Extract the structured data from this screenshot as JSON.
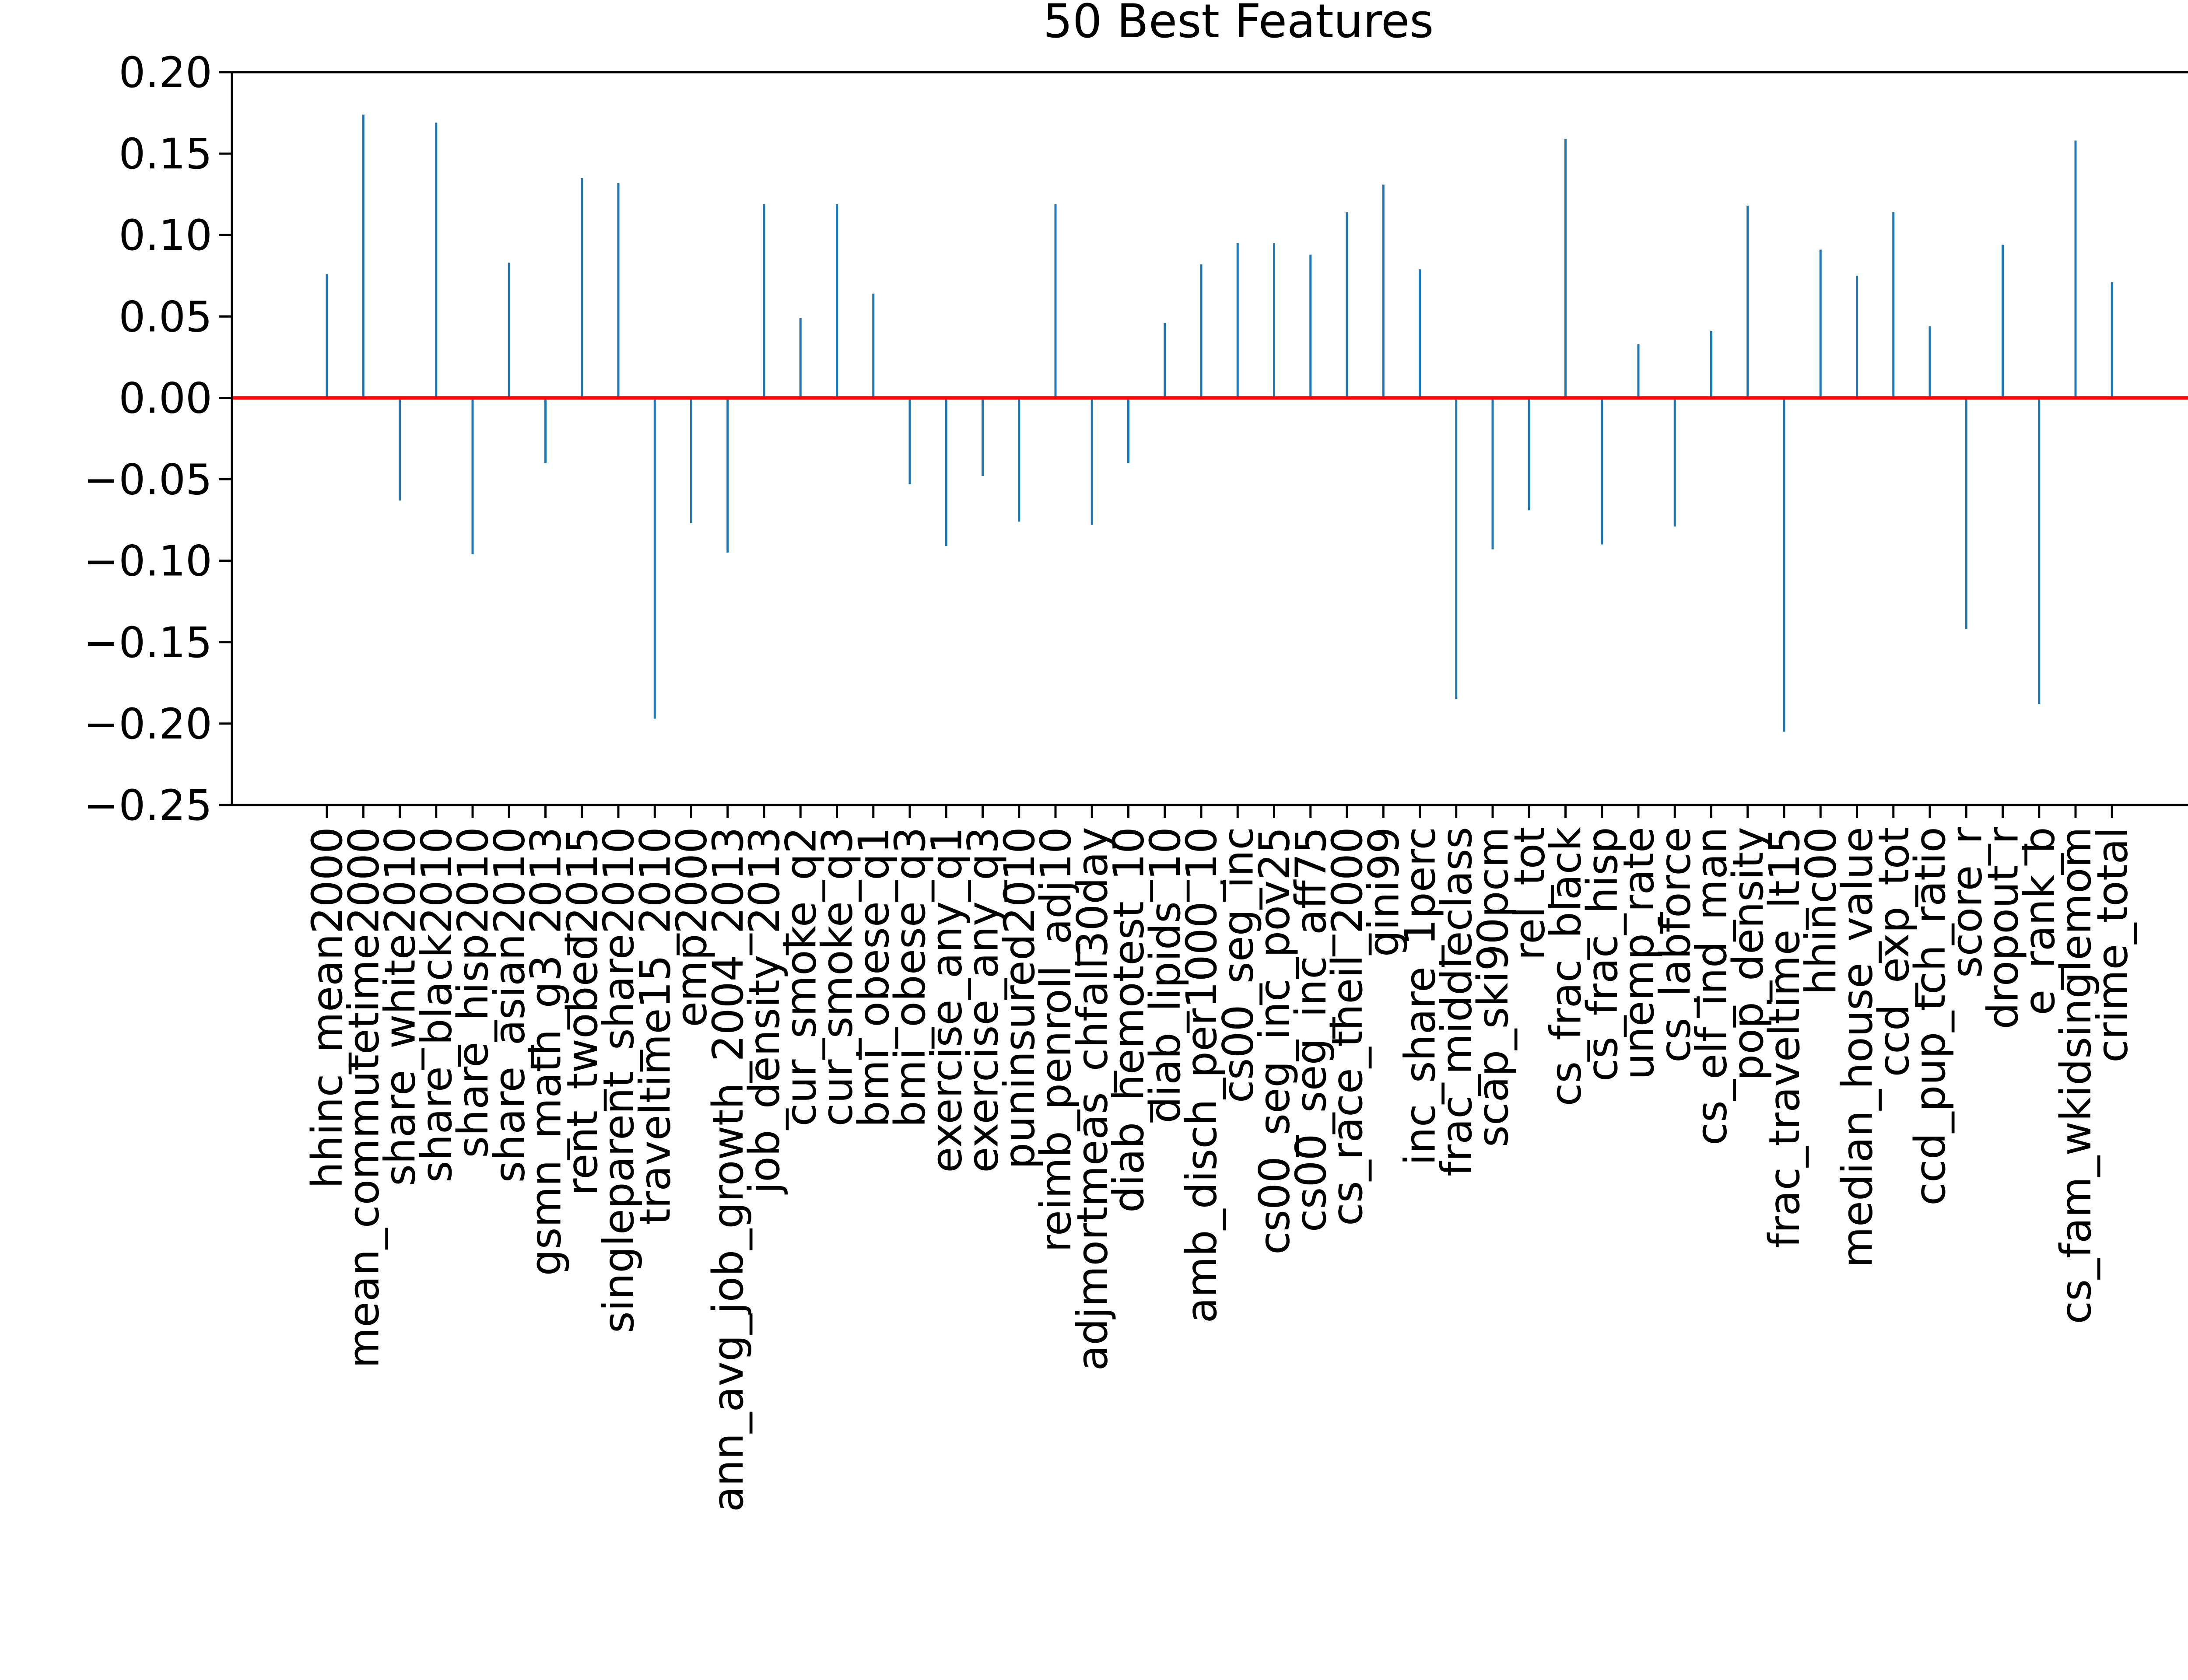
{
  "chart_data": {
    "type": "bar",
    "title": "50 Best Features",
    "xlabel": "",
    "ylabel": "",
    "ylim": [
      -0.25,
      0.2
    ],
    "yticks": [
      "0.20",
      "0.15",
      "0.10",
      "0.05",
      "0.00",
      "−0.05",
      "−0.10",
      "−0.15",
      "−0.20",
      "−0.25"
    ],
    "grid": false,
    "bar_color": "#1f77b4",
    "zero_line_color": "#ff0000",
    "categories": [
      "hhinc_mean2000",
      "mean_commutetime2000",
      "share_white2010",
      "share_black2010",
      "share_hisp2010",
      "share_asian2010",
      "gsmn_math_g3_2013",
      "rent_twobed2015",
      "singleparent_share2010",
      "traveltime15_2010",
      "emp2000",
      "ann_avg_job_growth_2004_2013",
      "job_density_2013",
      "cur_smoke_q2",
      "cur_smoke_q3",
      "bmi_obese_q1",
      "bmi_obese_q3",
      "exercise_any_q1",
      "exercise_any_q3",
      "puninsured2010",
      "reimb_penroll_adj10",
      "adjmortmeas_chfall30day",
      "diab_hemotest_10",
      "diab_lipids_10",
      "amb_disch_per1000_10",
      "cs00_seg_inc",
      "cs00_seg_inc_pov25",
      "cs00_seg_inc_aff75",
      "cs_race_theil_2000",
      "gini99",
      "inc_share_1perc",
      "frac_middleclass",
      "scap_ski90pcm",
      "rel_tot",
      "cs_frac_black",
      "cs_frac_hisp",
      "unemp_rate",
      "cs_labforce",
      "cs_elf_ind_man",
      "pop_density",
      "frac_traveltime_lt15",
      "hhinc00",
      "median_house_value",
      "ccd_exp_tot",
      "ccd_pup_tch_ratio",
      "score_r",
      "dropout_r",
      "e_rank_b",
      "cs_fam_wkidsinglemom",
      "crime_total"
    ],
    "values": [
      0.076,
      0.174,
      -0.063,
      0.169,
      -0.096,
      0.083,
      -0.04,
      0.135,
      0.132,
      -0.197,
      -0.077,
      -0.095,
      0.119,
      0.049,
      0.119,
      0.064,
      -0.053,
      -0.091,
      -0.048,
      -0.076,
      0.119,
      -0.078,
      -0.04,
      0.046,
      0.082,
      0.095,
      0.095,
      0.088,
      0.114,
      0.131,
      0.079,
      -0.185,
      -0.093,
      -0.069,
      0.159,
      -0.09,
      0.033,
      -0.079,
      0.041,
      0.118,
      -0.205,
      0.091,
      0.075,
      0.114,
      0.044,
      -0.142,
      0.094,
      -0.188,
      0.158,
      0.071
    ]
  }
}
